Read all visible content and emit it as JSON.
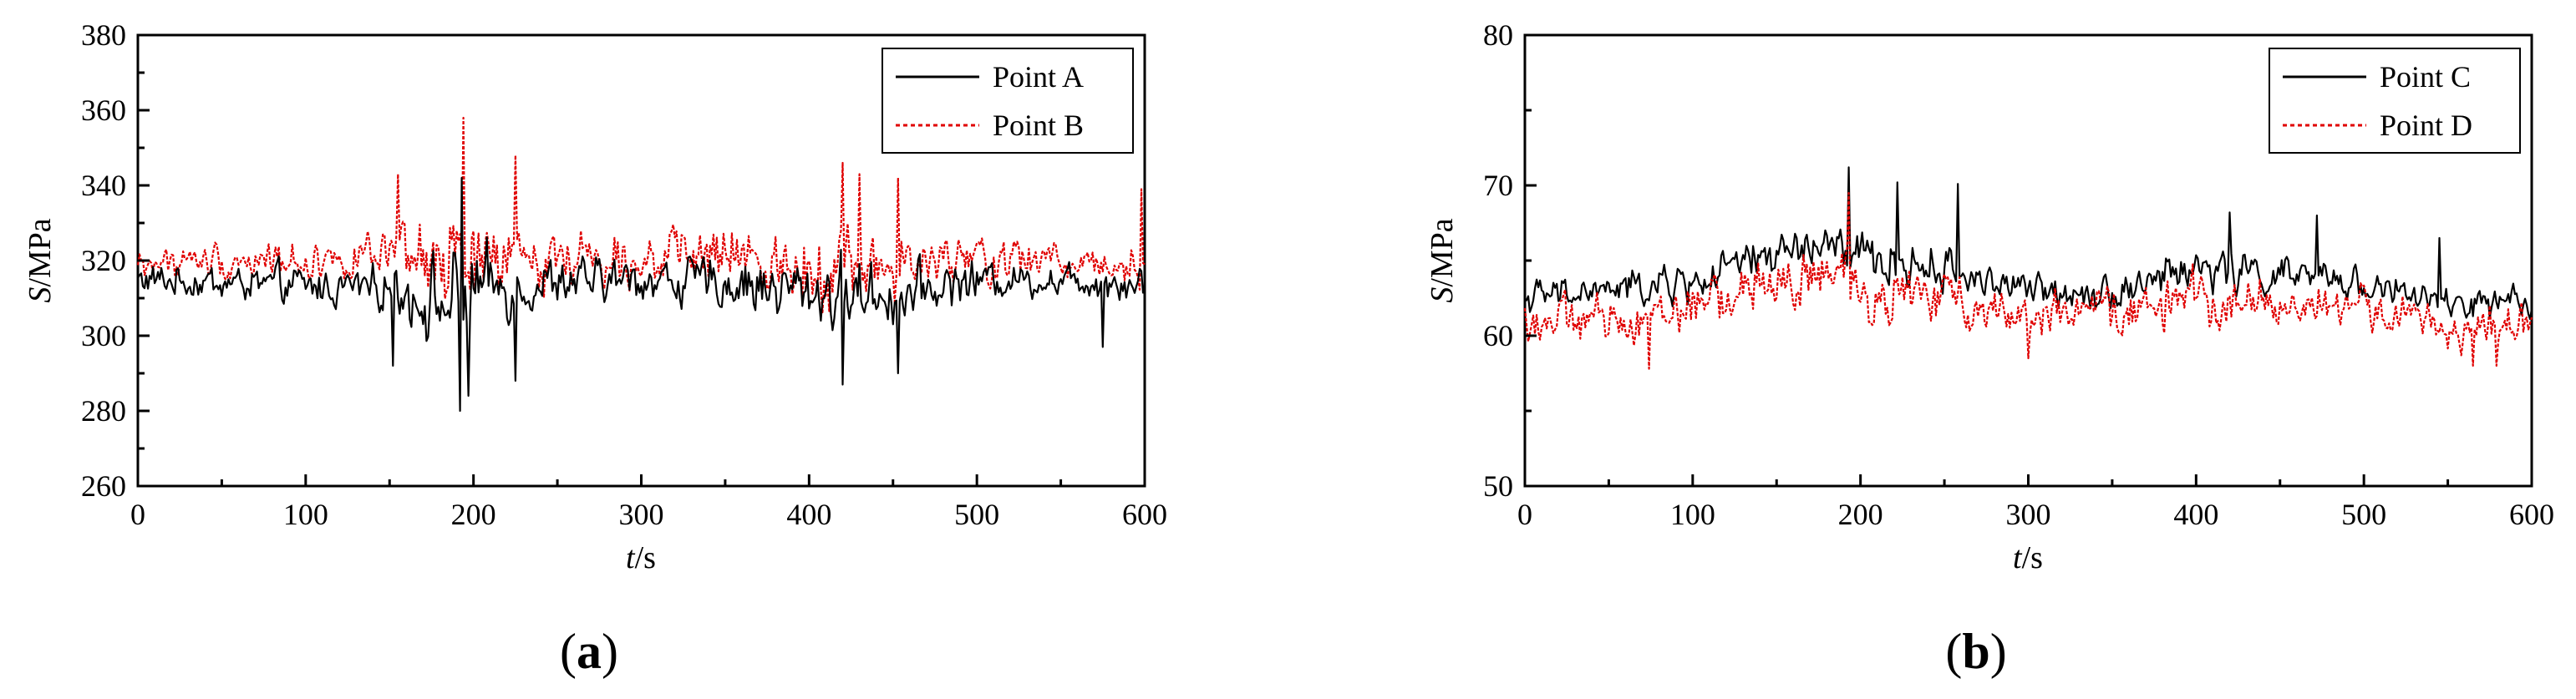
{
  "chart_data": [
    {
      "type": "line",
      "panel": "(a)",
      "panel_letter": "a",
      "xlabel_var": "t",
      "xlabel_unit": "/s",
      "ylabel_var": "S",
      "ylabel_unit": "/MPa",
      "xlim": [
        0,
        600
      ],
      "ylim": [
        260,
        380
      ],
      "xticks": [
        0,
        100,
        200,
        300,
        400,
        500,
        600
      ],
      "yticks": [
        260,
        280,
        300,
        320,
        340,
        360,
        380
      ],
      "grid": false,
      "legend": {
        "position": "top-right"
      },
      "series": [
        {
          "name": "Point A",
          "color": "#000000",
          "dash": "solid",
          "base": [
            [
              0,
              315
            ],
            [
              50,
              314
            ],
            [
              100,
              313
            ],
            [
              150,
              313
            ],
            [
              185,
              308
            ],
            [
              200,
              312
            ],
            [
              250,
              314
            ],
            [
              300,
              315
            ],
            [
              350,
              314
            ],
            [
              400,
              312
            ],
            [
              450,
              311
            ],
            [
              500,
              315
            ],
            [
              550,
              315
            ],
            [
              600,
              314
            ]
          ],
          "amp": [
            [
              0,
              6
            ],
            [
              150,
              8
            ],
            [
              170,
              14
            ],
            [
              190,
              20
            ],
            [
              210,
              14
            ],
            [
              230,
              10
            ],
            [
              300,
              8
            ],
            [
              380,
              11
            ],
            [
              420,
              14
            ],
            [
              470,
              10
            ],
            [
              520,
              6
            ],
            [
              600,
              7
            ]
          ],
          "extremes": [
            [
              192,
              280
            ],
            [
              197,
              284
            ],
            [
              152,
              292
            ],
            [
              225,
              288
            ],
            [
              420,
              287
            ],
            [
              453,
              290
            ],
            [
              575,
              297
            ],
            [
              193,
              342
            ]
          ]
        },
        {
          "name": "Point B",
          "color": "#e00000",
          "dash": "dotted",
          "base": [
            [
              0,
              319
            ],
            [
              50,
              320
            ],
            [
              100,
              320
            ],
            [
              150,
              321
            ],
            [
              185,
              318
            ],
            [
              200,
              319
            ],
            [
              250,
              321
            ],
            [
              300,
              321
            ],
            [
              350,
              321
            ],
            [
              400,
              319
            ],
            [
              450,
              318
            ],
            [
              500,
              320
            ],
            [
              550,
              320
            ],
            [
              600,
              319
            ]
          ],
          "amp": [
            [
              0,
              6
            ],
            [
              150,
              8
            ],
            [
              170,
              14
            ],
            [
              190,
              22
            ],
            [
              210,
              15
            ],
            [
              230,
              12
            ],
            [
              300,
              9
            ],
            [
              380,
              12
            ],
            [
              420,
              15
            ],
            [
              470,
              11
            ],
            [
              520,
              8
            ],
            [
              600,
              8
            ]
          ],
          "extremes": [
            [
              194,
              358
            ],
            [
              225,
              348
            ],
            [
              155,
              343
            ],
            [
              420,
              346
            ],
            [
              430,
              343
            ],
            [
              453,
              342
            ],
            [
              598,
              339
            ]
          ]
        }
      ]
    },
    {
      "type": "line",
      "panel": "(b)",
      "panel_letter": "b",
      "xlabel_var": "t",
      "xlabel_unit": "/s",
      "ylabel_var": "S",
      "ylabel_unit": "/MPa",
      "xlim": [
        0,
        600
      ],
      "ylim": [
        50,
        80
      ],
      "xticks": [
        0,
        100,
        200,
        300,
        400,
        500,
        600
      ],
      "yticks": [
        50,
        60,
        70,
        80
      ],
      "grid": false,
      "legend": {
        "position": "top-right"
      },
      "series": [
        {
          "name": "Point C",
          "color": "#000000",
          "dash": "solid",
          "base": [
            [
              0,
              62.5
            ],
            [
              50,
              63
            ],
            [
              100,
              63.5
            ],
            [
              150,
              65.5
            ],
            [
              180,
              66
            ],
            [
              200,
              65
            ],
            [
              250,
              64.5
            ],
            [
              300,
              63
            ],
            [
              350,
              63
            ],
            [
              400,
              64.5
            ],
            [
              450,
              64
            ],
            [
              500,
              63.5
            ],
            [
              550,
              62
            ],
            [
              600,
              62
            ]
          ],
          "amp": [
            [
              0,
              1.5
            ],
            [
              150,
              2
            ],
            [
              200,
              2.5
            ],
            [
              300,
              1.5
            ],
            [
              400,
              2
            ],
            [
              500,
              1.5
            ],
            [
              600,
              1.5
            ]
          ],
          "extremes": [
            [
              193,
              71.2
            ],
            [
              222,
              70.2
            ],
            [
              258,
              70.1
            ],
            [
              472,
              68
            ],
            [
              420,
              68.2
            ],
            [
              545,
              66.5
            ]
          ]
        },
        {
          "name": "Point D",
          "color": "#e00000",
          "dash": "dotted",
          "base": [
            [
              0,
              61
            ],
            [
              50,
              61
            ],
            [
              100,
              62
            ],
            [
              150,
              63.5
            ],
            [
              180,
              64
            ],
            [
              200,
              63
            ],
            [
              250,
              62.5
            ],
            [
              300,
              61.5
            ],
            [
              350,
              61.5
            ],
            [
              400,
              62.5
            ],
            [
              450,
              62
            ],
            [
              500,
              62
            ],
            [
              550,
              60.5
            ],
            [
              600,
              60.5
            ]
          ],
          "amp": [
            [
              0,
              2
            ],
            [
              150,
              2.5
            ],
            [
              200,
              3
            ],
            [
              300,
              2
            ],
            [
              400,
              2.5
            ],
            [
              500,
              2
            ],
            [
              600,
              2
            ]
          ],
          "extremes": [
            [
              74,
              57.8
            ],
            [
              300,
              58.5
            ],
            [
              565,
              58
            ],
            [
              579,
              58
            ],
            [
              193,
              69.5
            ]
          ]
        }
      ]
    }
  ]
}
